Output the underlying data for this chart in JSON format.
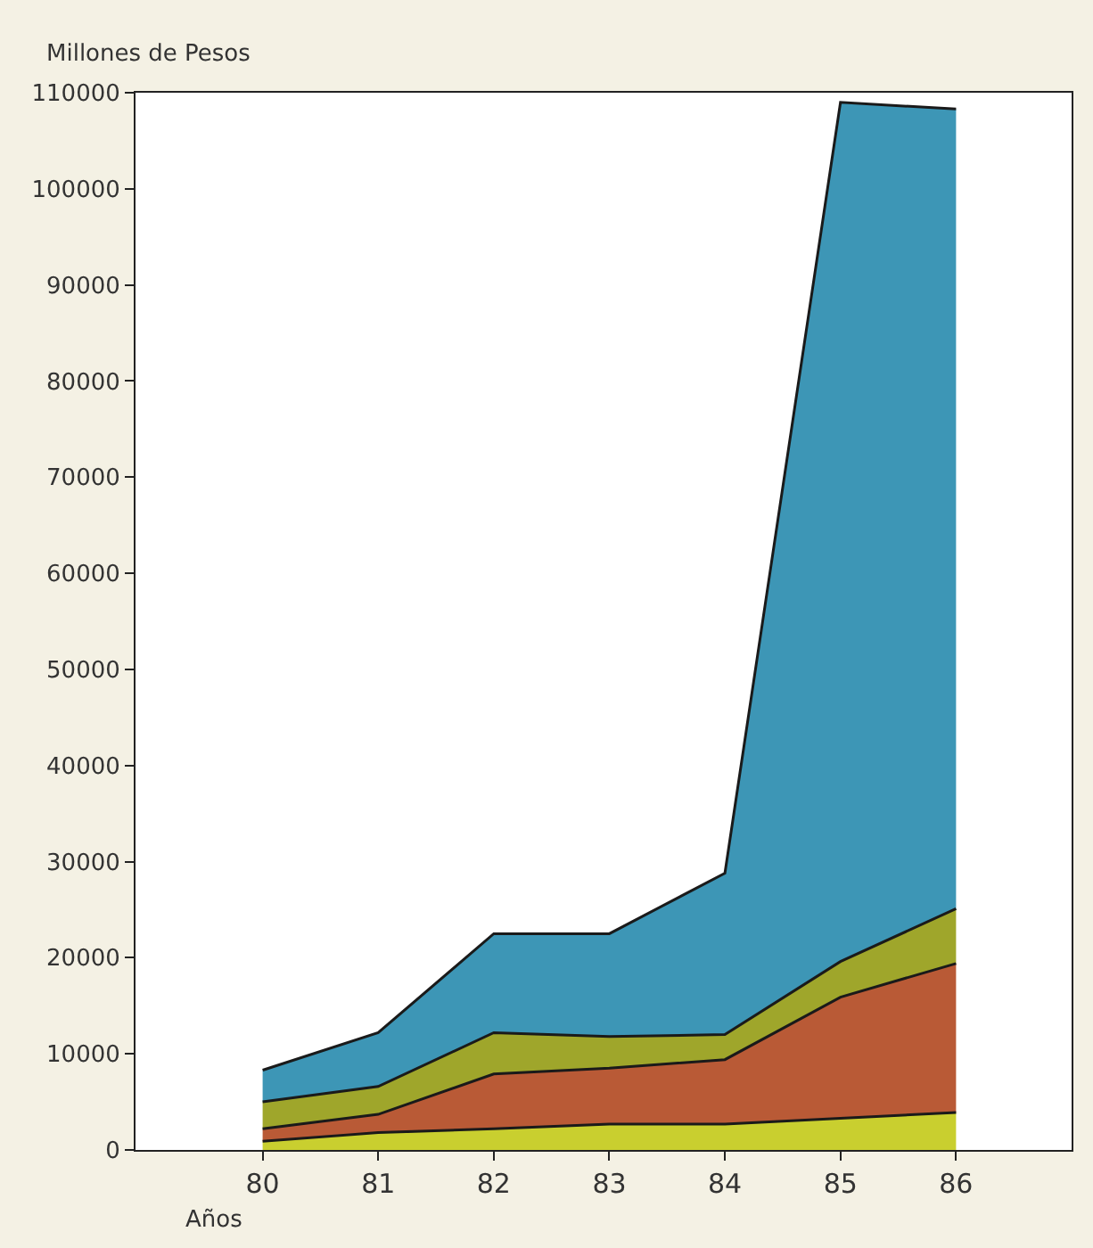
{
  "chart_data": {
    "type": "area",
    "stacked": true,
    "xlabel": "Años",
    "ylabel": "Millones de Pesos",
    "x": [
      80,
      81,
      82,
      83,
      84,
      85,
      86
    ],
    "series": [
      {
        "color": "#c9cf2f",
        "values": [
          900,
          1800,
          2200,
          2700,
          2700,
          3300,
          3900
        ]
      },
      {
        "color": "#b95a36",
        "values": [
          1300,
          1900,
          5700,
          5800,
          6700,
          12600,
          15500
        ]
      },
      {
        "color": "#9fa62b",
        "values": [
          2800,
          2900,
          4300,
          3300,
          2600,
          3700,
          5700
        ]
      },
      {
        "color": "#3d96b6",
        "values": [
          3300,
          5600,
          10300,
          10700,
          16800,
          89400,
          83200
        ]
      }
    ],
    "xlim": [
      78.9,
      87
    ],
    "xticks": [
      80,
      81,
      82,
      83,
      84,
      85,
      86
    ],
    "ylim": [
      0,
      110000
    ],
    "yticks": [
      0,
      10000,
      20000,
      30000,
      40000,
      50000,
      60000,
      70000,
      80000,
      90000,
      100000,
      110000
    ],
    "marker": "none",
    "line_style": "solid"
  }
}
